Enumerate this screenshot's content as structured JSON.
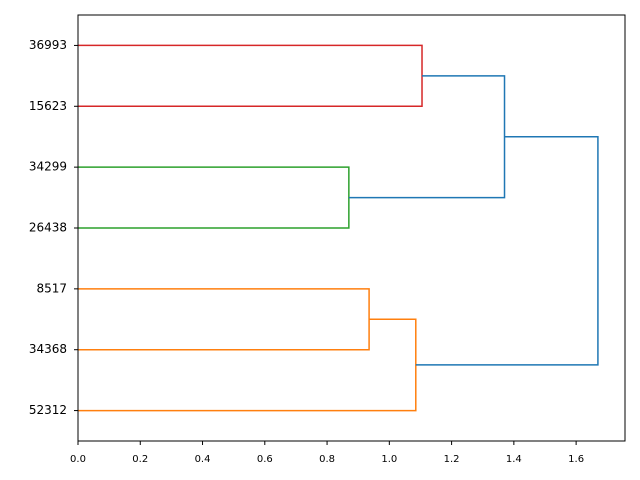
{
  "chart_data": {
    "type": "dendrogram",
    "orientation": "right",
    "leaves": [
      "36993",
      "15623",
      "34299",
      "26438",
      "8517",
      "34368",
      "52312"
    ],
    "merges": [
      {
        "children": [
          0,
          1
        ],
        "distance": 1.105,
        "color": "#d62728"
      },
      {
        "children": [
          2,
          3
        ],
        "distance": 0.87,
        "color": "#2ca02c"
      },
      {
        "children": [
          4,
          5
        ],
        "distance": 0.935,
        "color": "#ff7f0e"
      },
      {
        "children": [
          9,
          6
        ],
        "distance": 1.085,
        "color": "#ff7f0e"
      },
      {
        "children": [
          7,
          8
        ],
        "distance": 1.37,
        "color": "#1f77b4"
      },
      {
        "children": [
          11,
          10
        ],
        "distance": 1.67,
        "color": "#1f77b4"
      }
    ],
    "xlim": [
      0,
      1.757
    ],
    "xticks": [
      {
        "value": 0,
        "label": "0.0"
      },
      {
        "value": 0.2,
        "label": "0.2"
      },
      {
        "value": 0.4,
        "label": "0.4"
      },
      {
        "value": 0.6,
        "label": "0.6"
      },
      {
        "value": 0.8,
        "label": "0.8"
      },
      {
        "value": 1.0,
        "label": "1.0"
      },
      {
        "value": 1.2,
        "label": "1.2"
      },
      {
        "value": 1.4,
        "label": "1.4"
      },
      {
        "value": 1.6,
        "label": "1.6"
      }
    ]
  }
}
